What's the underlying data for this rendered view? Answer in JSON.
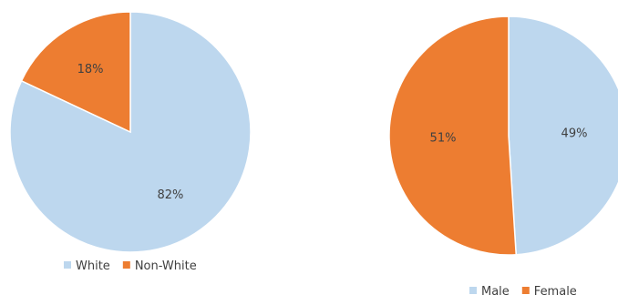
{
  "chart_data": [
    {
      "type": "pie",
      "title": "",
      "categories": [
        "White",
        "Non-White"
      ],
      "values": [
        82,
        18
      ],
      "labels": [
        "82%",
        "18%"
      ],
      "colors": [
        "#bdd7ee",
        "#ed7d31"
      ],
      "legend": [
        "White",
        "Non-White"
      ],
      "legend_position": "bottom"
    },
    {
      "type": "pie",
      "title": "",
      "categories": [
        "Male",
        "Female"
      ],
      "values": [
        49,
        51
      ],
      "labels": [
        "49%",
        "51%"
      ],
      "colors": [
        "#bdd7ee",
        "#ed7d31"
      ],
      "legend": [
        "Male",
        "Female"
      ],
      "legend_position": "bottom"
    }
  ]
}
